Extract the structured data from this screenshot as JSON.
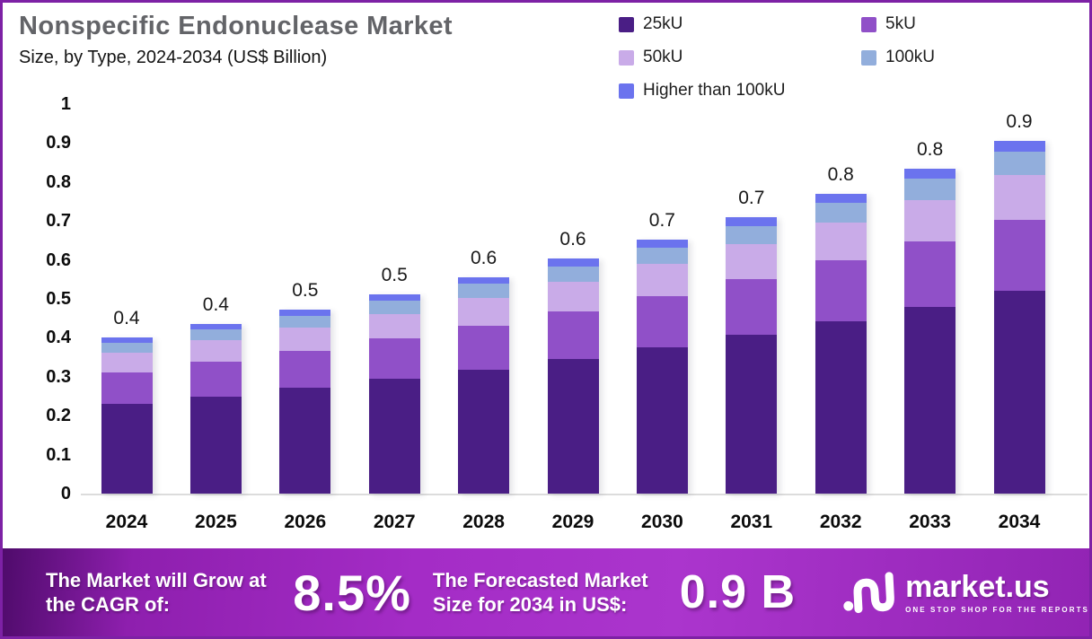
{
  "header": {
    "title": "Nonspecific Endonuclease Market",
    "subtitle": "Size, by Type, 2024-2034 (US$ Billion)"
  },
  "chart_data": {
    "type": "bar",
    "stacked": true,
    "title": "Nonspecific Endonuclease Market Size, by Type, 2024-2034",
    "unit": "US$ Billion",
    "categories": [
      "2024",
      "2025",
      "2026",
      "2027",
      "2028",
      "2029",
      "2030",
      "2031",
      "2032",
      "2033",
      "2034"
    ],
    "series": [
      {
        "name": "25kU",
        "color": "#4A1E85",
        "values": [
          0.23,
          0.25,
          0.271,
          0.294,
          0.319,
          0.346,
          0.375,
          0.407,
          0.442,
          0.479,
          0.52
        ]
      },
      {
        "name": "5kU",
        "color": "#9050C8",
        "values": [
          0.081,
          0.088,
          0.096,
          0.104,
          0.113,
          0.122,
          0.132,
          0.144,
          0.156,
          0.169,
          0.183
        ]
      },
      {
        "name": "50kU",
        "color": "#C9ABE8",
        "values": [
          0.05,
          0.055,
          0.059,
          0.064,
          0.07,
          0.076,
          0.082,
          0.089,
          0.097,
          0.105,
          0.114
        ]
      },
      {
        "name": "100kU",
        "color": "#92AEDC",
        "values": [
          0.026,
          0.029,
          0.031,
          0.034,
          0.037,
          0.04,
          0.043,
          0.047,
          0.051,
          0.055,
          0.06
        ]
      },
      {
        "name": "Higher than 100kU",
        "color": "#6B73EE",
        "values": [
          0.013,
          0.014,
          0.015,
          0.016,
          0.017,
          0.019,
          0.02,
          0.022,
          0.024,
          0.026,
          0.028
        ]
      }
    ],
    "total_labels": [
      "0.4",
      "0.4",
      "0.5",
      "0.5",
      "0.6",
      "0.6",
      "0.7",
      "0.7",
      "0.8",
      "0.8",
      "0.9"
    ],
    "ylim": [
      0,
      1
    ],
    "ytick_labels": [
      "1",
      "0.9",
      "0.8",
      "0.7",
      "0.6",
      "0.5",
      "0.4",
      "0.3",
      "0.2",
      "0.1",
      "0"
    ],
    "ytick_values": [
      1,
      0.9,
      0.8,
      0.7,
      0.6,
      0.5,
      0.4,
      0.3,
      0.2,
      0.1,
      0
    ],
    "grid": false,
    "legend_position": "top-right"
  },
  "banner": {
    "cagr_label": "The Market will Grow at the CAGR of:",
    "cagr_value": "8.5%",
    "forecast_label": "The Forecasted Market Size for 2034 in US$:",
    "forecast_value": "0.9 B",
    "brand": "market.us",
    "tagline": "ONE STOP SHOP FOR THE REPORTS"
  },
  "colors": {
    "frame_border": "#7D21A5",
    "title_gray": "#636468",
    "axis_line": "#DCDCDC",
    "banner_purple": "#A42CC6",
    "banner_text": "#FFFFFF"
  }
}
